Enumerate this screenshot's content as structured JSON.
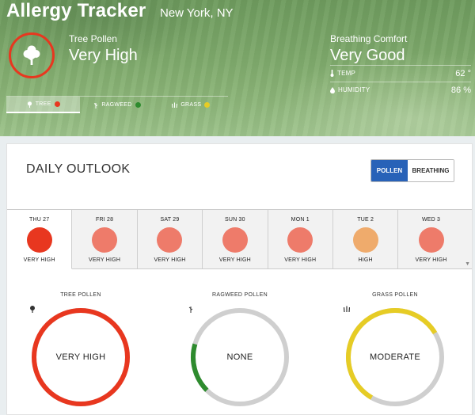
{
  "header": {
    "title": "Allergy Tracker",
    "location": "New York, NY",
    "current_pollen": {
      "icon": "tree-icon",
      "type": "Tree Pollen",
      "level": "Very High",
      "ring_color": "#e8371f"
    },
    "comfort": {
      "title": "Breathing Comfort",
      "value": "Very Good",
      "temp_label": "TEMP",
      "temp_value": "62 °",
      "humidity_label": "HUMIDITY",
      "humidity_value": "86 %"
    },
    "tabs": [
      {
        "label": "TREE",
        "icon": "tree-icon",
        "dot_color": "#e8371f",
        "active": true
      },
      {
        "label": "RAGWEED",
        "icon": "ragweed-icon",
        "dot_color": "#2e8b2e",
        "active": false
      },
      {
        "label": "GRASS",
        "icon": "grass-icon",
        "dot_color": "#e6cc25",
        "active": false
      }
    ]
  },
  "outlook": {
    "title": "DAILY OUTLOOK",
    "toggle": {
      "pollen": "POLLEN",
      "breathing": "BREATHING"
    },
    "days": [
      {
        "name": "THU 27",
        "level": "VERY HIGH",
        "color": "#e8371f",
        "active": true
      },
      {
        "name": "FRI 28",
        "level": "VERY HIGH",
        "color": "#ee7b6a",
        "active": false
      },
      {
        "name": "SAT 29",
        "level": "VERY HIGH",
        "color": "#ee7b6a",
        "active": false
      },
      {
        "name": "SUN 30",
        "level": "VERY HIGH",
        "color": "#ee7b6a",
        "active": false
      },
      {
        "name": "MON 1",
        "level": "VERY HIGH",
        "color": "#ee7b6a",
        "active": false
      },
      {
        "name": "TUE 2",
        "level": "HIGH",
        "color": "#efab6c",
        "active": false
      },
      {
        "name": "WED 3",
        "level": "VERY HIGH",
        "color": "#ee7b6a",
        "active": false
      }
    ]
  },
  "gauges": [
    {
      "label": "TREE POLLEN",
      "icon": "tree-icon",
      "value": "VERY HIGH",
      "fill_fraction": 1.0,
      "color": "#e8371f"
    },
    {
      "label": "RAGWEED POLLEN",
      "icon": "ragweed-icon",
      "value": "NONE",
      "fill_fraction": 0.17,
      "color": "#2e8b2e"
    },
    {
      "label": "GRASS POLLEN",
      "icon": "grass-icon",
      "value": "MODERATE",
      "fill_fraction": 0.58,
      "color": "#e6cc25"
    }
  ]
}
